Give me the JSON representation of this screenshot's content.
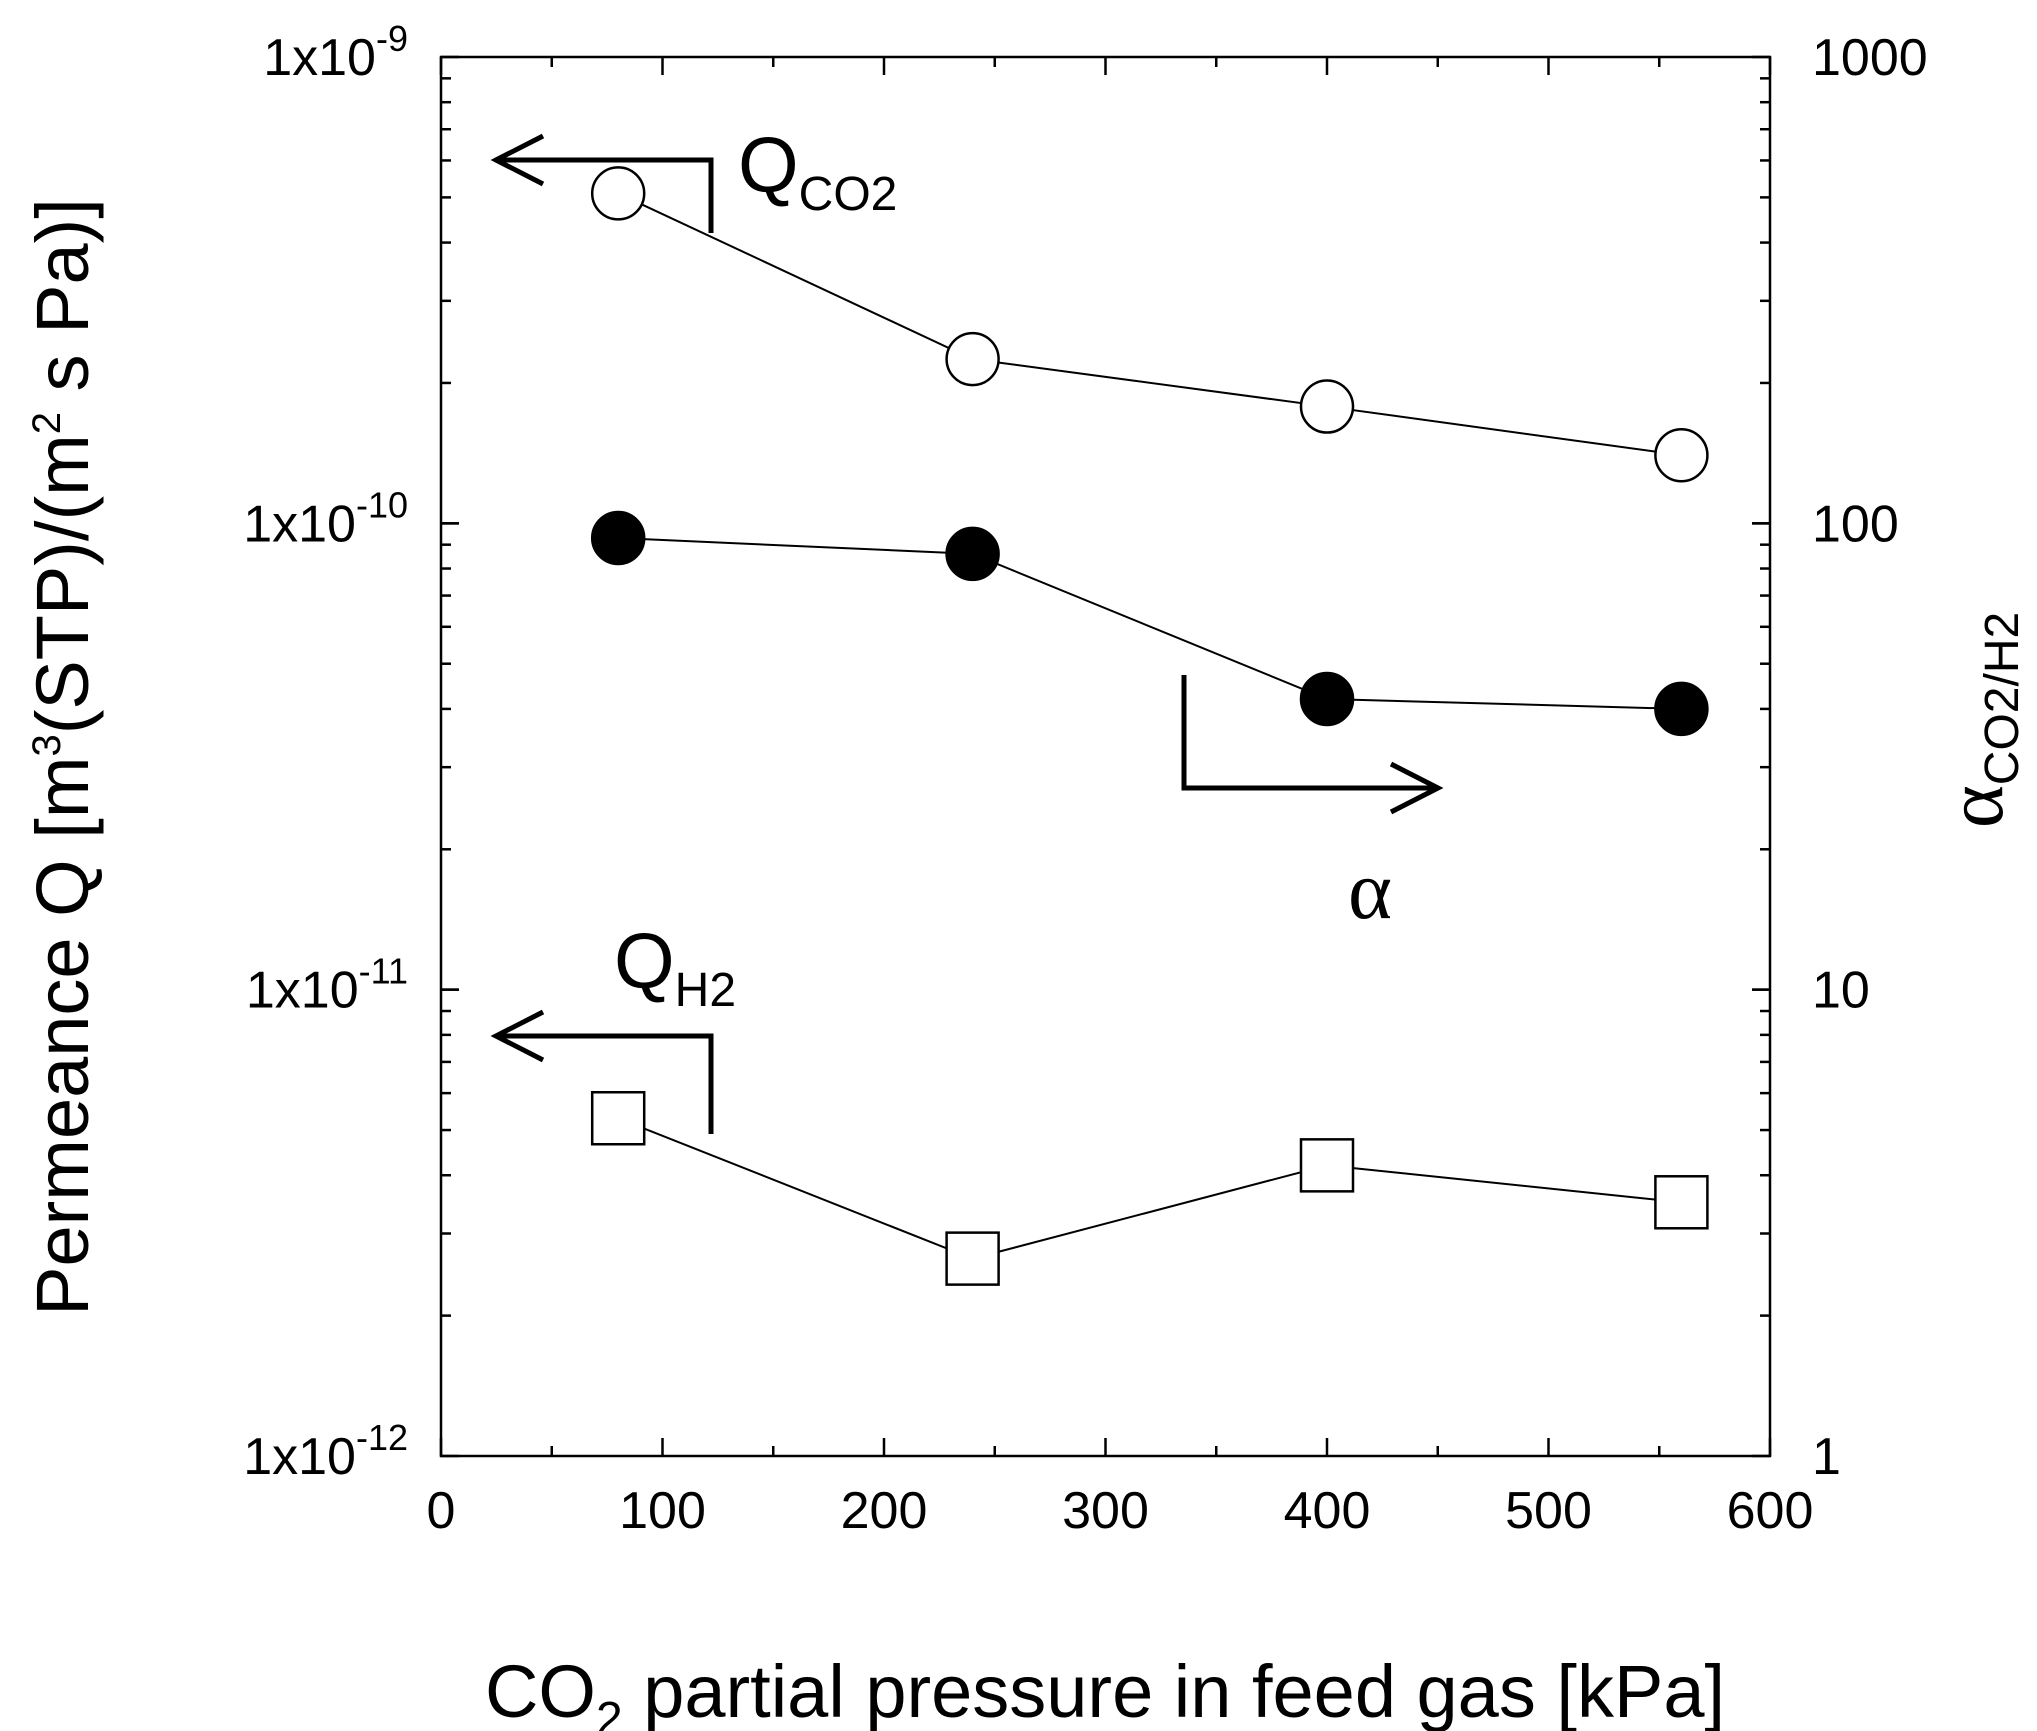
{
  "chart_data": {
    "type": "scatter",
    "title": "",
    "xlabel": {
      "main": "CO",
      "sub": "2",
      "rest": " partial pressure in feed gas [kPa]"
    },
    "ylabel_left": {
      "p1": "Permeance Q [m",
      "sup1": "3",
      "p2": "(STP)/(m",
      "sup2": "2",
      "p3": " s Pa)]"
    },
    "ylabel_right": {
      "main": "α",
      "sub": "CO2/H2"
    },
    "xlim": [
      0,
      600
    ],
    "x_ticks": [
      0,
      100,
      200,
      300,
      400,
      500,
      600
    ],
    "y_left_scale": "log",
    "y_left_lim": [
      1e-12,
      1e-09
    ],
    "y_left_ticks": [
      {
        "value": 1e-09,
        "base": "1x10",
        "exp": "-9"
      },
      {
        "value": 1e-10,
        "base": "1x10",
        "exp": "-10"
      },
      {
        "value": 1e-11,
        "base": "1x10",
        "exp": "-11"
      },
      {
        "value": 1e-12,
        "base": "1x10",
        "exp": "-12"
      }
    ],
    "y_right_scale": "log",
    "y_right_lim": [
      1,
      1000
    ],
    "y_right_ticks": [
      "1000",
      "100",
      "10",
      "1"
    ],
    "grid": false,
    "series": [
      {
        "name": "Q_CO2",
        "axis": "left",
        "marker": "open-circle",
        "x": [
          80,
          240,
          400,
          560
        ],
        "y": [
          5.1e-10,
          2.25e-10,
          1.78e-10,
          1.4e-10
        ]
      },
      {
        "name": "α",
        "axis": "right",
        "marker": "filled-circle",
        "x": [
          80,
          240,
          400,
          560
        ],
        "y": [
          93,
          86,
          42,
          40
        ]
      },
      {
        "name": "Q_H2",
        "axis": "left",
        "marker": "open-square",
        "x": [
          80,
          240,
          400,
          560
        ],
        "y": [
          5.3e-12,
          2.65e-12,
          4.2e-12,
          3.5e-12
        ]
      }
    ],
    "annotations": [
      {
        "main": "Q",
        "sub": "CO2",
        "arrow": "left"
      },
      {
        "main": "α",
        "sub": "",
        "arrow": "right"
      },
      {
        "main": "Q",
        "sub": "H2",
        "arrow": "left"
      }
    ]
  }
}
